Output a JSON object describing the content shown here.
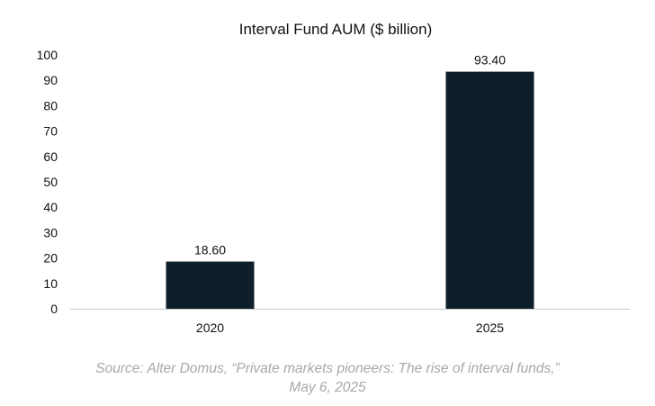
{
  "chart_data": {
    "type": "bar",
    "title": "Interval Fund AUM ($ billion)",
    "categories": [
      "2020",
      "2025"
    ],
    "values": [
      18.6,
      93.4
    ],
    "value_labels": [
      "18.60",
      "93.40"
    ],
    "ylim": [
      0,
      100
    ],
    "yticks": [
      0,
      10,
      20,
      30,
      40,
      50,
      60,
      70,
      80,
      90,
      100
    ],
    "xlabel": "",
    "ylabel": "",
    "grid": false,
    "legend": "none",
    "bar_color": "#0e1f2c"
  },
  "source": {
    "line1": "Source: Alter Domus, “Private markets pioneers: The rise of interval funds,”",
    "line2": "May 6, 2025"
  }
}
